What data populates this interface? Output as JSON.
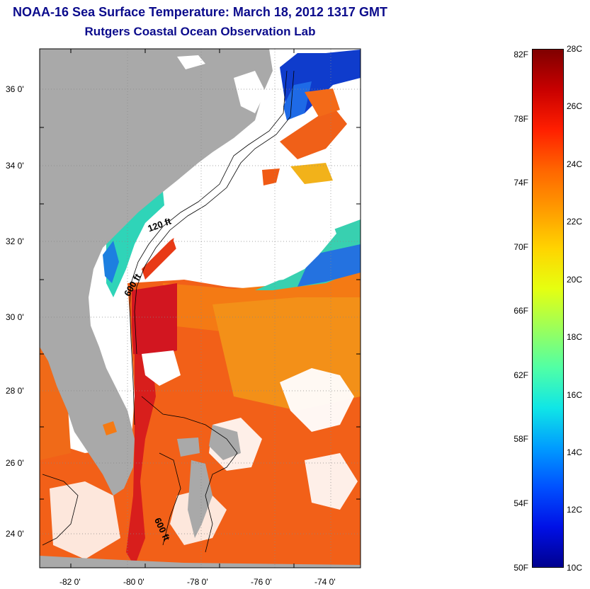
{
  "header": {
    "title": "NOAA-16 Sea Surface Temperature:  March 18, 2012 1317 GMT",
    "subtitle": "Rutgers Coastal Ocean Observation Lab"
  },
  "map": {
    "lat_ticks": [
      "36 0'",
      "34 0'",
      "32 0'",
      "30 0'",
      "28 0'",
      "26 0'",
      "24 0'"
    ],
    "lon_ticks": [
      "-82 0'",
      "-80 0'",
      "-78 0'",
      "-76 0'",
      "-74 0'"
    ],
    "depth_contours": [
      "120 ft",
      "600 ft",
      "600 ft"
    ],
    "colors": {
      "land": "#a9a9a9",
      "cloud": "#ffffff",
      "warm": "#f05a14",
      "hot": "#d2141e",
      "cool": "#18c8c0",
      "cold": "#0a28c8"
    }
  },
  "colorbar": {
    "fahrenheit": [
      "82F",
      "78F",
      "74F",
      "70F",
      "66F",
      "62F",
      "58F",
      "54F",
      "50F"
    ],
    "celsius": [
      "28C",
      "26C",
      "24C",
      "22C",
      "20C",
      "18C",
      "16C",
      "14C",
      "12C",
      "10C"
    ],
    "scale_colors": [
      "#7f0000",
      "#c80000",
      "#ff1e00",
      "#ff6400",
      "#ff9a00",
      "#ffd400",
      "#e6ff10",
      "#9cff5a",
      "#50ffa6",
      "#10e6e6",
      "#009cff",
      "#0050ff",
      "#0010e6",
      "#00008f"
    ]
  }
}
